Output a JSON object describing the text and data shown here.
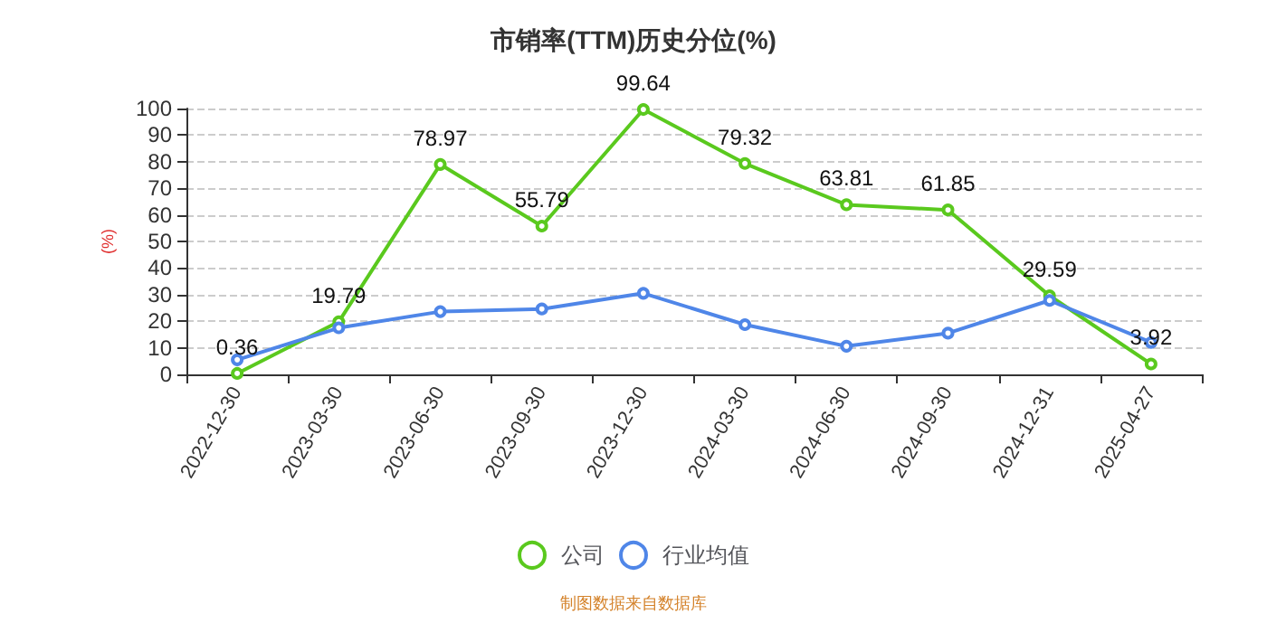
{
  "chart_data": {
    "type": "line",
    "title": "市销率(TTM)历史分位(%)",
    "ylabel": "(%)",
    "categories": [
      "2022-12-30",
      "2023-03-30",
      "2023-06-30",
      "2023-09-30",
      "2023-12-30",
      "2024-03-30",
      "2024-06-30",
      "2024-09-30",
      "2024-12-31",
      "2025-04-27"
    ],
    "series": [
      {
        "name": "公司",
        "color": "#5ac91e",
        "values": [
          0.36,
          19.79,
          78.97,
          55.79,
          99.64,
          79.32,
          63.81,
          61.85,
          29.59,
          3.92
        ],
        "data_labels": true
      },
      {
        "name": "行业均值",
        "color": "#4f86e8",
        "values": [
          5.5,
          17.5,
          23.6,
          24.6,
          30.5,
          18.7,
          10.6,
          15.5,
          27.8,
          12
        ]
      }
    ],
    "ylim": [
      0,
      100
    ],
    "yticks": [
      0,
      10,
      20,
      30,
      40,
      50,
      60,
      70,
      80,
      90,
      100
    ],
    "grid": "y",
    "legend": "bottom",
    "marker": "circle",
    "annotations": [
      "制图数据来自数据库"
    ]
  }
}
